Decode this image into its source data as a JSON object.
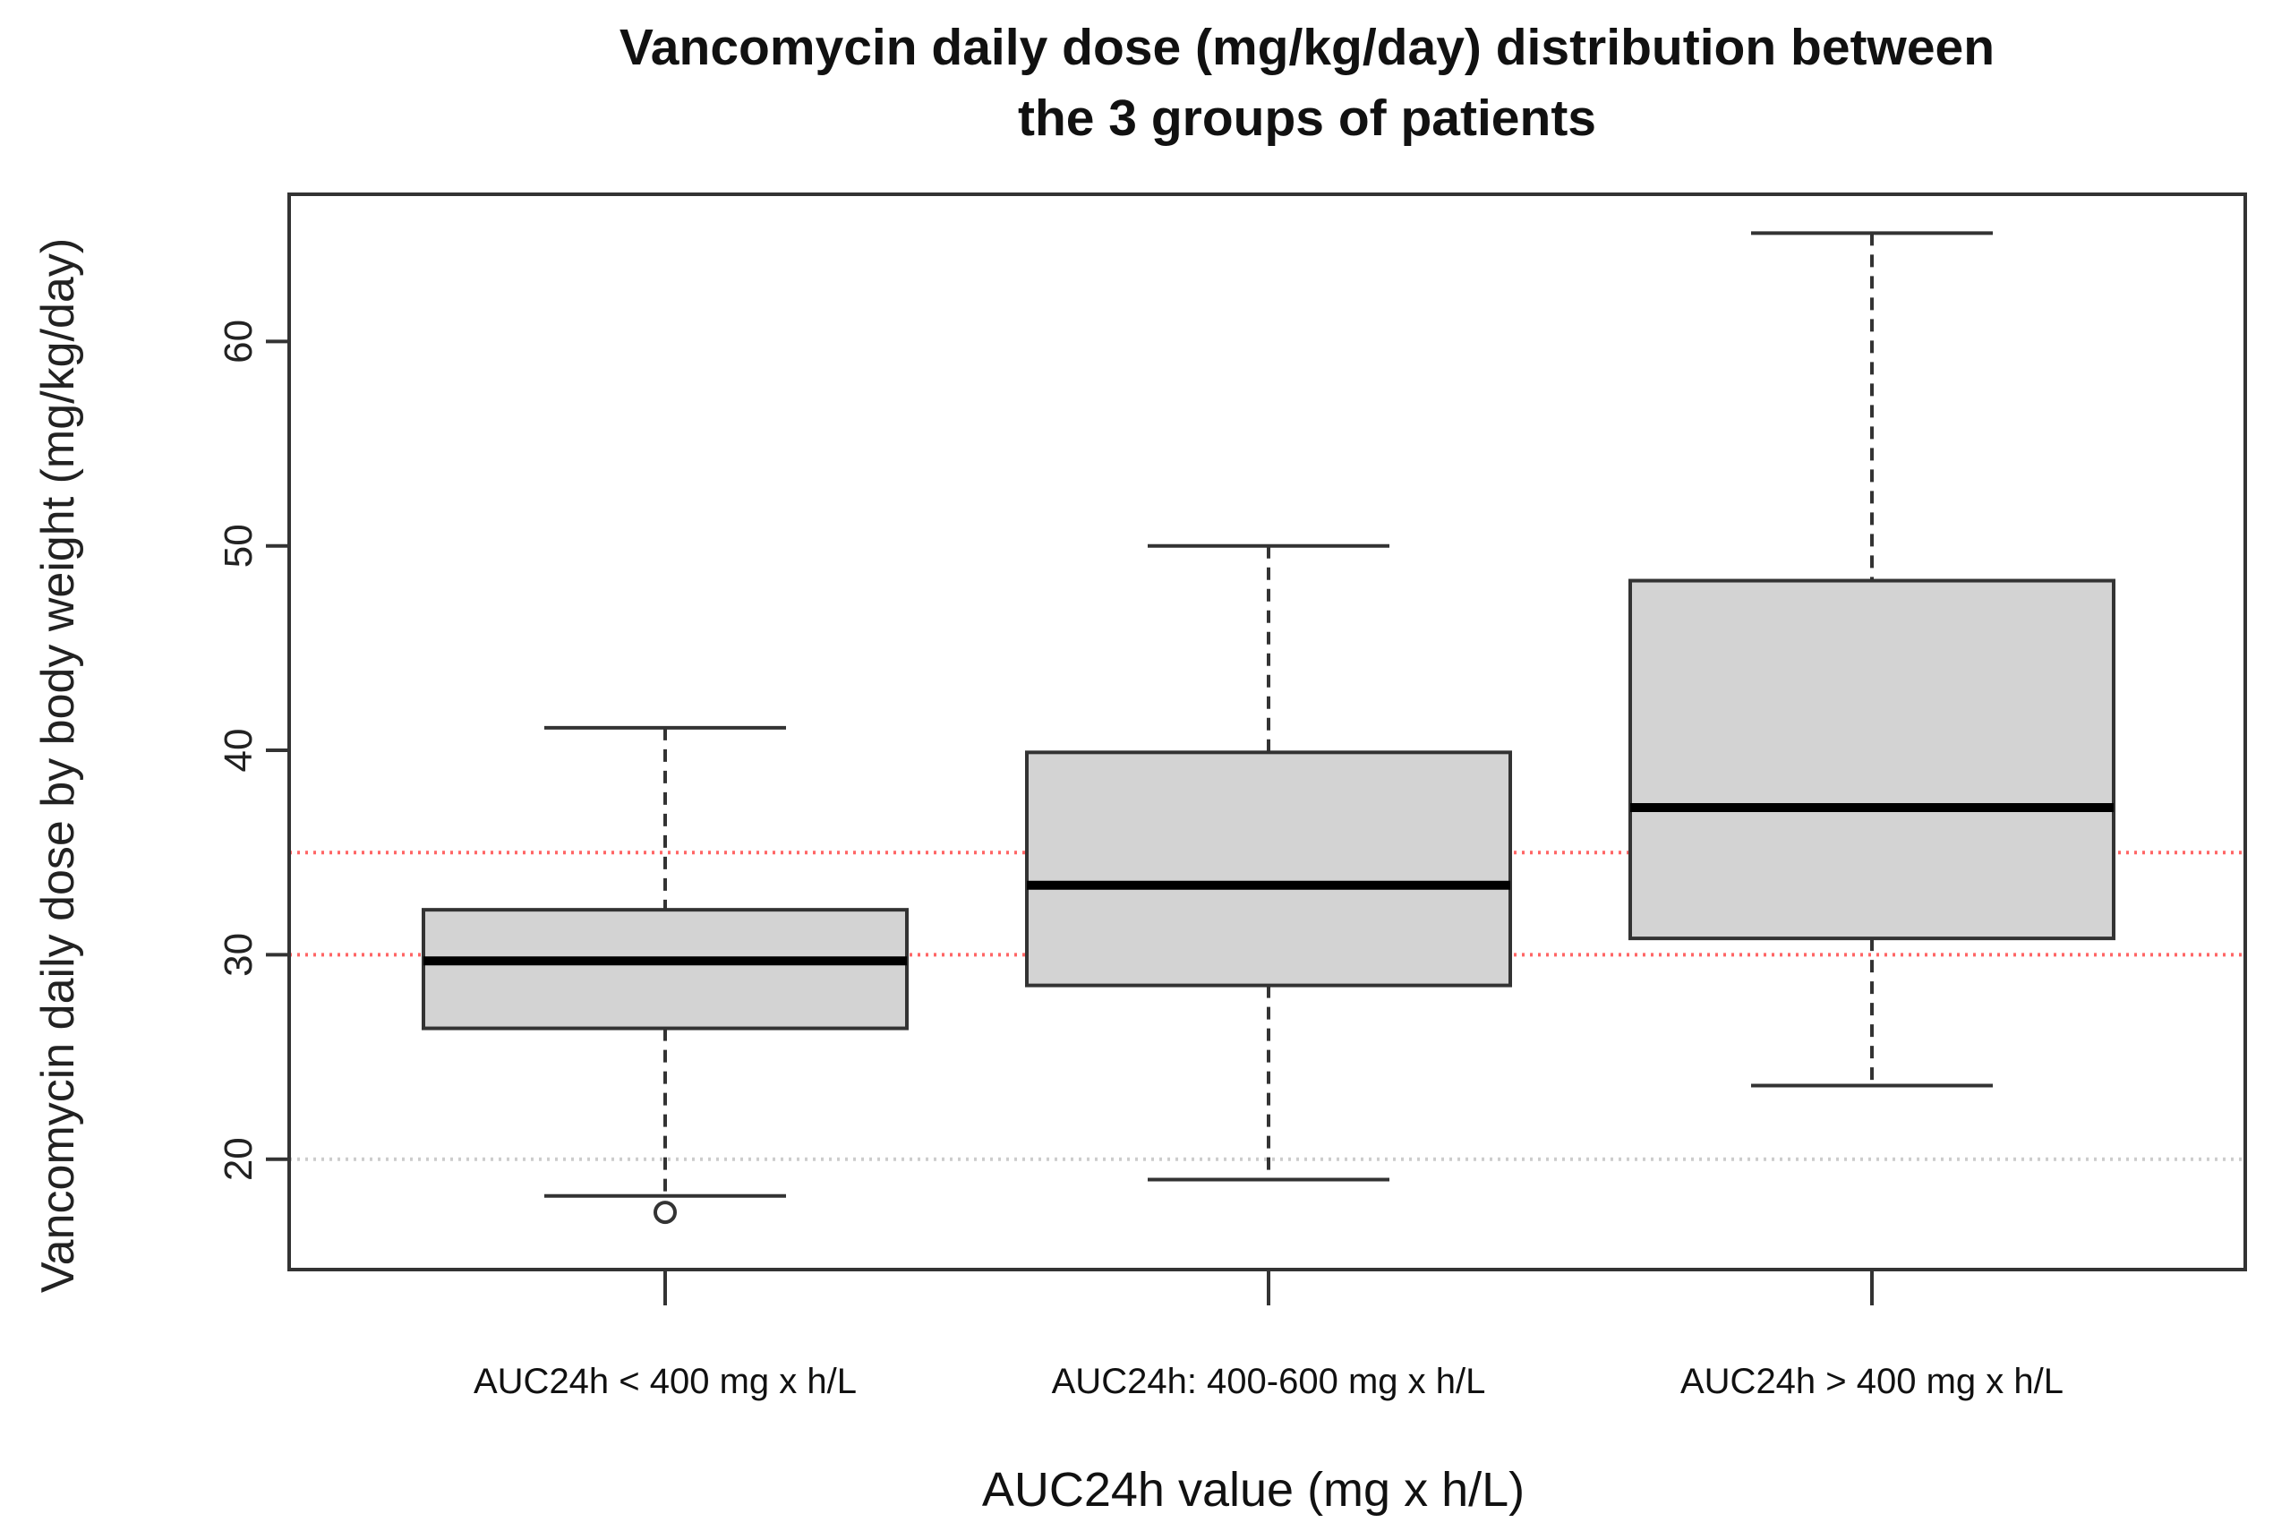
{
  "chart_data": {
    "type": "boxplot",
    "title": [
      "Vancomycin daily dose (mg/kg/day) distribution between",
      "the 3 groups of patients"
    ],
    "xlabel": "AUC24h value (mg x h/L)",
    "ylabel": "Vancomycin daily dose by body weight (mg/kg/day)",
    "ylim": [
      14.6,
      67.2
    ],
    "yticks": [
      20,
      30,
      40,
      50,
      60
    ],
    "categories": [
      "AUC24h < 400 mg x h/L",
      "AUC24h: 400-600 mg x h/L",
      "AUC24h > 400 mg x h/L"
    ],
    "boxes": [
      {
        "whisker_low": 18.2,
        "q1": 26.4,
        "median": 29.7,
        "q3": 32.2,
        "whisker_high": 41.1,
        "outliers": [
          17.4
        ]
      },
      {
        "whisker_low": 19.0,
        "q1": 28.5,
        "median": 33.4,
        "q3": 39.9,
        "whisker_high": 50.0,
        "outliers": []
      },
      {
        "whisker_low": 23.6,
        "q1": 30.8,
        "median": 37.2,
        "q3": 48.3,
        "whisker_high": 65.3,
        "outliers": []
      }
    ],
    "reference_lines": [
      {
        "y": 35,
        "color": "#ff6666",
        "style": "dotted"
      },
      {
        "y": 30,
        "color": "#ff6666",
        "style": "dotted"
      },
      {
        "y": 20,
        "color": "#cccccc",
        "style": "dotted"
      }
    ],
    "colors": {
      "box_fill": "#d3d3d3",
      "stroke": "#333333",
      "median": "#000000"
    }
  }
}
